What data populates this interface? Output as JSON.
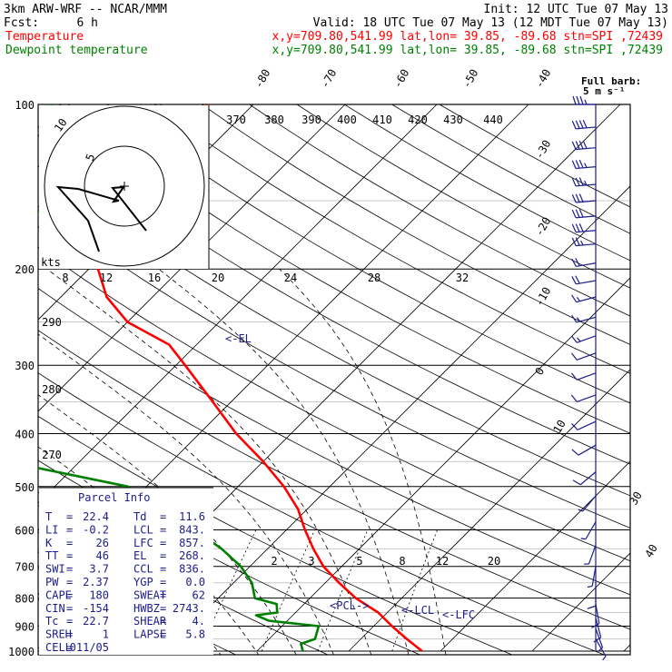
{
  "header": {
    "model": "3km ARW-WRF -- NCAR/MMM",
    "init": "Init: 12 UTC Tue 07 May 13",
    "fcst_label": "Fcst:",
    "fcst_value": "6 h",
    "valid": "Valid: 18 UTC Tue 07 May 13 (12 MDT Tue 07 May 13)",
    "temp_line": {
      "name": "Temperature",
      "info": "x,y=709.80,541.99   lat,lon= 39.85, -89.68  stn=SPI ,72439"
    },
    "dew_line": {
      "name": "Dewpoint temperature",
      "info": "x,y=709.80,541.99   lat,lon= 39.85, -89.68  stn=SPI ,72439"
    }
  },
  "colors": {
    "temperature": "#ff0000",
    "dewpoint": "#008000",
    "barbs": "#1c1c8c",
    "hodograph": "#000000",
    "grid": "#000000",
    "labels_blue": "#1c1c8c"
  },
  "full_barb_label_1": "Full barb:",
  "full_barb_label_2": "5 m s⁻¹",
  "chart_data": {
    "type": "line",
    "subtype": "skew-t log-p",
    "pressure_ticks": [
      "100",
      "200",
      "300",
      "400",
      "500",
      "600",
      "700",
      "800",
      "900",
      "1000"
    ],
    "pressure_values": [
      100,
      200,
      300,
      400,
      500,
      600,
      700,
      800,
      900,
      1000
    ],
    "isotherm_labels": [
      "-80",
      "-70",
      "-60",
      "-50",
      "-40",
      "-30",
      "-20",
      "-10",
      "0",
      "10",
      "30",
      "40"
    ],
    "theta_labels": [
      "370",
      "380",
      "390",
      "400",
      "410",
      "420",
      "430",
      "440"
    ],
    "theta_left_labels": [
      "290",
      "280",
      "270"
    ],
    "mixing_ratio_labels": [
      "2",
      "3",
      "5",
      "8",
      "12",
      "20"
    ],
    "series": [
      {
        "name": "Temperature",
        "p": [
          1000,
          950,
          900,
          850,
          800,
          750,
          700,
          650,
          600,
          550,
          500,
          450,
          400,
          350,
          300,
          275,
          250,
          225,
          200,
          175,
          150,
          125,
          100
        ],
        "t": [
          28,
          25,
          22,
          19,
          15,
          11.5,
          8,
          5,
          2,
          -1,
          -5,
          -10,
          -16,
          -22,
          -29,
          -33,
          -40,
          -45,
          -49,
          -52,
          -53,
          -54,
          -55
        ]
      },
      {
        "name": "Dewpoint temperature",
        "p": [
          1000,
          970,
          950,
          900,
          880,
          860,
          850,
          820,
          800,
          750,
          700,
          650,
          600,
          550,
          500,
          450,
          420,
          400,
          380,
          350,
          300,
          250,
          220,
          200,
          180,
          150,
          125,
          100
        ],
        "t": [
          15,
          14,
          15,
          14,
          8,
          6,
          8,
          7,
          4,
          2,
          -1,
          -5,
          -10,
          -16,
          -22,
          -38,
          -48,
          -50,
          -50,
          -52,
          -58,
          -64,
          -65,
          -64,
          -61,
          -62,
          -67,
          -72
        ]
      }
    ],
    "level_labels": [
      {
        "text": "<-EL",
        "p": 268
      },
      {
        "text": "<PCL->",
        "p": 843
      },
      {
        "text": "<-LCL",
        "p": 855
      },
      {
        "text": "<-LFC",
        "p": 860
      }
    ],
    "hodograph": {
      "ring_labels": [
        "5",
        "10"
      ],
      "speed_labels": [
        "kts",
        "8",
        "12",
        "16",
        "20",
        "24",
        "28",
        "32"
      ],
      "points": [
        [
          24,
          -49
        ],
        [
          -13,
          -2
        ],
        [
          -1,
          -1
        ],
        [
          -12,
          -17
        ],
        [
          -6,
          -16
        ],
        [
          -51,
          -3
        ],
        [
          -73,
          -1
        ],
        [
          -40,
          -38
        ],
        [
          -34,
          -55
        ],
        [
          -28,
          -72
        ]
      ]
    },
    "parcel_info": {
      "title": "Parcel Info",
      "rows": [
        [
          "T",
          "=",
          "22.4",
          "Td",
          "=",
          "11.6"
        ],
        [
          "LI",
          "=",
          "-0.2",
          "LCL",
          "=",
          "843."
        ],
        [
          "K",
          "=",
          "26",
          "LFC",
          "=",
          "857."
        ],
        [
          "TT",
          "=",
          "46",
          "EL",
          "=",
          "268."
        ],
        [
          "SWI",
          "=",
          "3.7",
          "CCL",
          "=",
          "836."
        ],
        [
          "PW",
          "=",
          "2.37",
          "YGP",
          "=",
          "0.0"
        ],
        [
          "CAPE",
          "=",
          "180",
          "SWEAT",
          "=",
          "62"
        ],
        [
          "CIN",
          "=",
          "-154",
          "HWBZ",
          "=",
          "2743."
        ],
        [
          "Tc",
          "=",
          "22.7",
          "SHEAR",
          "=",
          "4."
        ],
        [
          "SREH",
          "=",
          "1",
          "LAPSE",
          "=",
          "5.8"
        ],
        [
          "CELL",
          "=",
          "011/05",
          "",
          "",
          ""
        ]
      ]
    },
    "wind_barbs": [
      {
        "p": 100,
        "spd": 35,
        "dir": 270
      },
      {
        "p": 110,
        "spd": 40,
        "dir": 265
      },
      {
        "p": 120,
        "spd": 40,
        "dir": 265
      },
      {
        "p": 130,
        "spd": 35,
        "dir": 265
      },
      {
        "p": 140,
        "spd": 35,
        "dir": 265
      },
      {
        "p": 150,
        "spd": 30,
        "dir": 265
      },
      {
        "p": 160,
        "spd": 30,
        "dir": 265
      },
      {
        "p": 170,
        "spd": 30,
        "dir": 265
      },
      {
        "p": 180,
        "spd": 25,
        "dir": 265
      },
      {
        "p": 195,
        "spd": 20,
        "dir": 260
      },
      {
        "p": 210,
        "spd": 20,
        "dir": 260
      },
      {
        "p": 225,
        "spd": 15,
        "dir": 255
      },
      {
        "p": 245,
        "spd": 15,
        "dir": 255
      },
      {
        "p": 265,
        "spd": 15,
        "dir": 250
      },
      {
        "p": 285,
        "spd": 10,
        "dir": 250
      },
      {
        "p": 310,
        "spd": 10,
        "dir": 250
      },
      {
        "p": 340,
        "spd": 10,
        "dir": 250
      },
      {
        "p": 380,
        "spd": 10,
        "dir": 245
      },
      {
        "p": 420,
        "spd": 10,
        "dir": 240
      },
      {
        "p": 470,
        "spd": 10,
        "dir": 230
      },
      {
        "p": 520,
        "spd": 5,
        "dir": 220
      },
      {
        "p": 580,
        "spd": 5,
        "dir": 210
      },
      {
        "p": 640,
        "spd": 5,
        "dir": 200
      },
      {
        "p": 700,
        "spd": 5,
        "dir": 190
      },
      {
        "p": 760,
        "spd": 10,
        "dir": 180
      },
      {
        "p": 820,
        "spd": 10,
        "dir": 170
      },
      {
        "p": 870,
        "spd": 10,
        "dir": 165
      },
      {
        "p": 910,
        "spd": 5,
        "dir": 160
      },
      {
        "p": 950,
        "spd": 5,
        "dir": 150
      }
    ]
  }
}
